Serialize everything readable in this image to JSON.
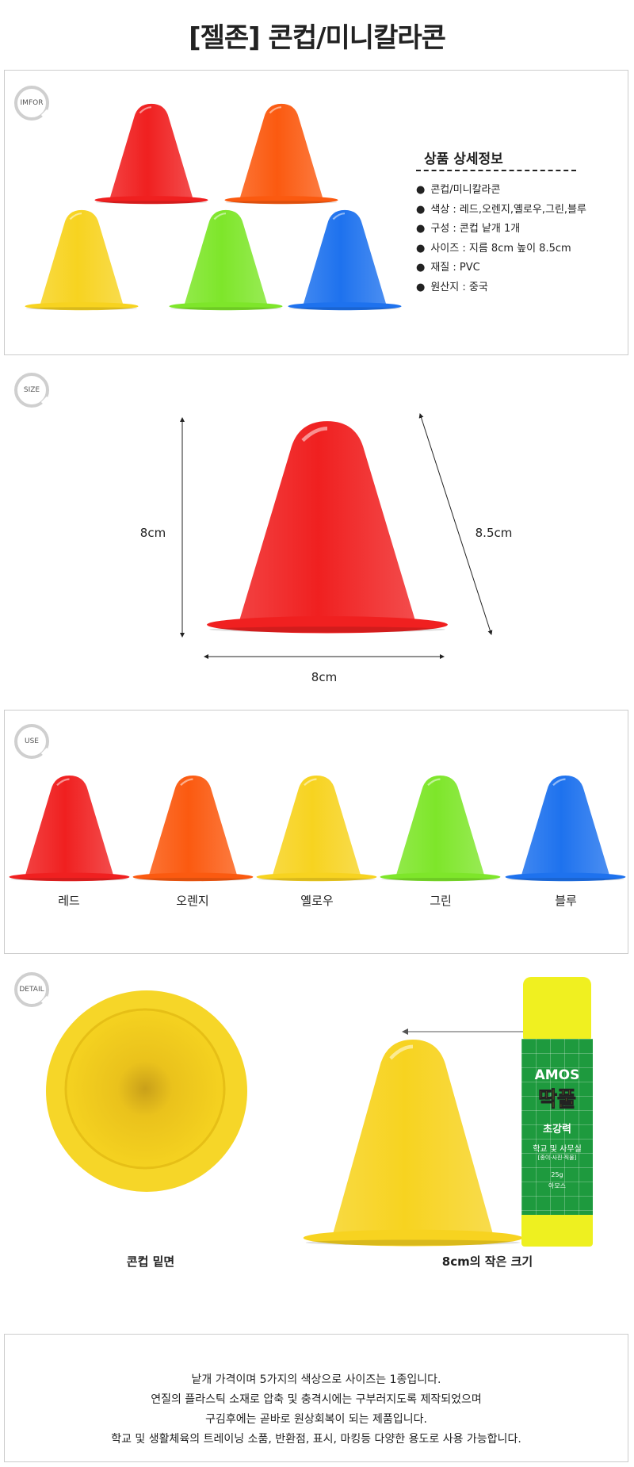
{
  "title": "[젤존] 콘컵/미니칼라콘",
  "colors": {
    "red": "#f02020",
    "orange": "#fb5a10",
    "yellow": "#f7d320",
    "green": "#7ee62a",
    "blue": "#1e72ee",
    "badge_ring": "#cfcfcf"
  },
  "sections": {
    "info": {
      "badge": "IMFOR",
      "heading": "상품 상세정보",
      "items": [
        "콘컵/미니칼라콘",
        "색상 : 레드,오렌지,옐로우,그린,블루",
        "구성 : 콘컵 낱개 1개",
        "사이즈 : 지름 8cm 높이 8.5cm",
        "재질 : PVC",
        "원산지 : 중국"
      ]
    },
    "size": {
      "badge": "SIZE",
      "height_label": "8cm",
      "slant_label": "8.5cm",
      "width_label": "8cm"
    },
    "use": {
      "badge": "USE",
      "colors": [
        "레드",
        "오렌지",
        "옐로우",
        "그린",
        "블루"
      ]
    },
    "detail": {
      "badge": "DETAIL",
      "bottom_label": "콘컵 밑면",
      "size_label": "8cm의 작은 크기",
      "glue": {
        "brand": "AMOS",
        "name": "딱풀",
        "strength": "초강력",
        "use": "학교 및 사무실",
        "materials": "[종이·사진·직물]",
        "weight": "25g",
        "maker": "아모스"
      }
    }
  },
  "description": [
    "낱개 가격이며 5가지의 색상으로 사이즈는 1종입니다.",
    "연질의 플라스틱 소재로 압축 및 충격시에는 구부러지도록 제작되었으며",
    "구김후에는 곧바로 원상회복이 되는 제품입니다.",
    "학교 및 생활체육의 트레이닝 소품, 반환점, 표시, 마킹등 다양한 용도로 사용 가능합니다."
  ]
}
